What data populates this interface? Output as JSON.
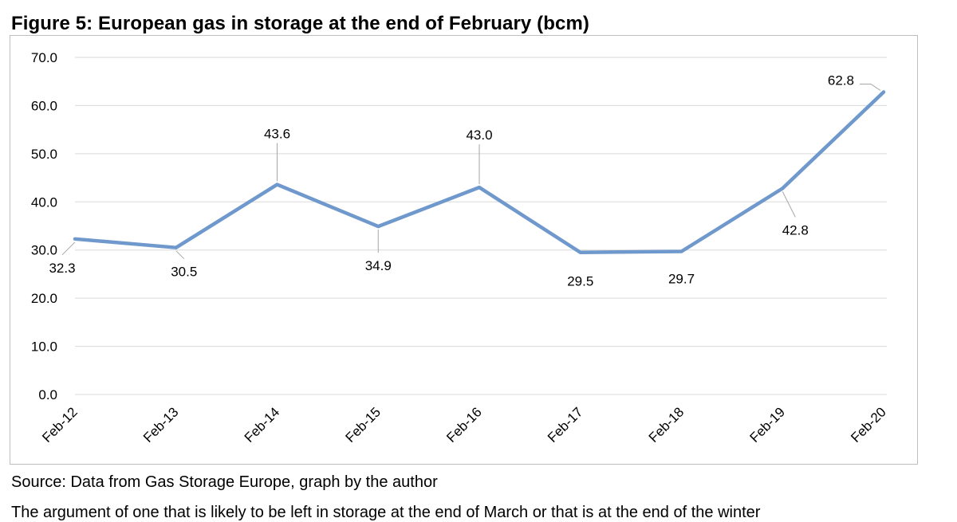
{
  "figure": {
    "title": "Figure 5: European gas in storage at the end of February (bcm)",
    "source": "Source: Data from Gas Storage Europe, graph by the author",
    "trailing_text": "The argument of one that is likely to be left in storage at the end of March or that is at the end of the winter"
  },
  "colors": {
    "line": "#6f98cc",
    "grid": "#d9d9d9",
    "frame": "#bfbfbf",
    "leader": "#a6a6a6"
  },
  "chart_data": {
    "type": "line",
    "title": "Figure 5: European gas in storage at the end of February (bcm)",
    "xlabel": "",
    "ylabel": "",
    "categories": [
      "Feb-12",
      "Feb-13",
      "Feb-14",
      "Feb-15",
      "Feb-16",
      "Feb-17",
      "Feb-18",
      "Feb-19",
      "Feb-20"
    ],
    "series": [
      {
        "values": [
          32.3,
          30.5,
          43.6,
          34.9,
          43.0,
          29.5,
          29.7,
          42.8,
          62.8
        ],
        "data_labels": [
          "32.3",
          "30.5",
          "43.6",
          "34.9",
          "43.0",
          "29.5",
          "29.7",
          "42.8",
          "62.8"
        ]
      }
    ],
    "yticks": [
      "0.0",
      "10.0",
      "20.0",
      "30.0",
      "40.0",
      "50.0",
      "60.0",
      "70.0"
    ],
    "ylim": [
      0,
      70
    ],
    "grid": "horizontal",
    "legend": "none"
  }
}
